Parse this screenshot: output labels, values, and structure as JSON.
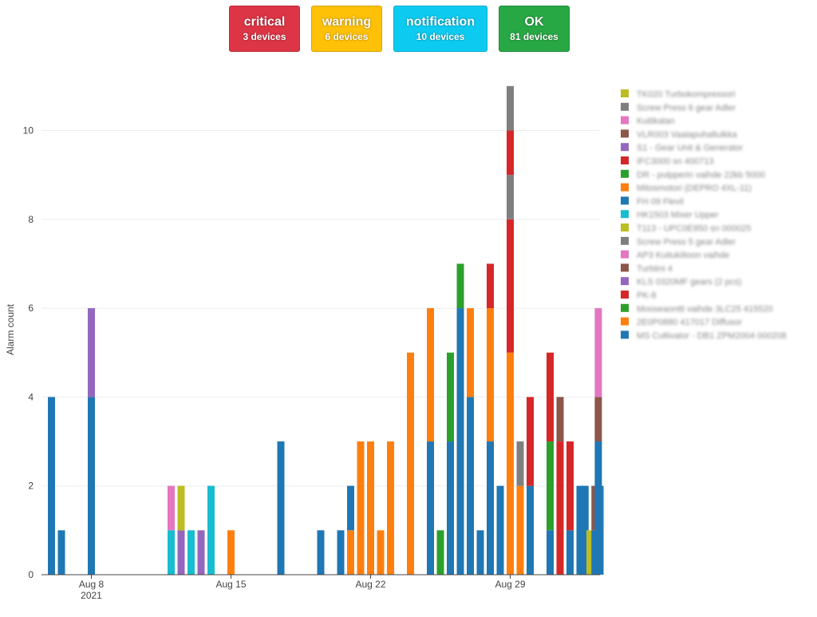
{
  "status": [
    {
      "key": "critical",
      "label": "critical",
      "count": "3 devices",
      "color": "#dc3545"
    },
    {
      "key": "warning",
      "label": "warning",
      "count": "6 devices",
      "color": "#ffc107"
    },
    {
      "key": "notification",
      "label": "notification",
      "count": "10 devices",
      "color": "#0dcaf0"
    },
    {
      "key": "ok",
      "label": "OK",
      "count": "81 devices",
      "color": "#28a745"
    }
  ],
  "chart_data": {
    "type": "bar",
    "stacked": true,
    "title": "",
    "xlabel": "",
    "ylabel": "Alarm count",
    "ylim": [
      0,
      11.5
    ],
    "yticks": [
      0,
      2,
      4,
      6,
      8,
      10
    ],
    "xlim": [
      "2021-08-05T12:00",
      "2021-09-02T12:00"
    ],
    "xticks": [
      {
        "date": "2021-08-08",
        "label": "Aug 8",
        "sublabel": "2021"
      },
      {
        "date": "2021-08-15",
        "label": "Aug 15",
        "sublabel": ""
      },
      {
        "date": "2021-08-22",
        "label": "Aug 22",
        "sublabel": ""
      },
      {
        "date": "2021-08-29",
        "label": "Aug 29",
        "sublabel": ""
      }
    ],
    "grid": true,
    "legend_position": "right",
    "legend": [
      {
        "name": "TK020 Turbokompressori",
        "color": "#bcbd22"
      },
      {
        "name": "Screw Press 6 gear Adler",
        "color": "#7f7f7f"
      },
      {
        "name": "Kuitikalan",
        "color": "#e377c2"
      },
      {
        "name": "VLR003 Vaaiapuhaltulkka",
        "color": "#8c564b"
      },
      {
        "name": "S1 - Gear Unit & Generator",
        "color": "#9467bd"
      },
      {
        "name": "IFC3000 sn 400713",
        "color": "#d62728"
      },
      {
        "name": "DR - pulpperin vaihde 22kb 5000",
        "color": "#2ca02c"
      },
      {
        "name": "Mitosmotori (DEPRO 4XL-11)",
        "color": "#ff7f0e"
      },
      {
        "name": "FH 09 Flevil",
        "color": "#1f77b4"
      },
      {
        "name": "HK1503 Mixer Upper",
        "color": "#17becf"
      },
      {
        "name": "T113 - UPC0E950 sn 000025",
        "color": "#bcbd22"
      },
      {
        "name": "Screw Press 5 gear Adler",
        "color": "#7f7f7f"
      },
      {
        "name": "AP3 Kuitukiitoon vaihde",
        "color": "#e377c2"
      },
      {
        "name": "Turbiini 4",
        "color": "#8c564b"
      },
      {
        "name": "KLS 0320MF gears (2 pcs)",
        "color": "#9467bd"
      },
      {
        "name": "PK-8",
        "color": "#d62728"
      },
      {
        "name": "Mooseaontti vaihde 3LC25 415520",
        "color": "#2ca02c"
      },
      {
        "name": "2E0P0880 417017 Diffusor",
        "color": "#ff7f0e"
      },
      {
        "name": "MS Cultivator - DB1 ZPM2004 000208",
        "color": "#1f77b4"
      }
    ],
    "bars": [
      {
        "x": "2021-08-06T00:00",
        "segments": [
          {
            "c": "#1f77b4",
            "v": 4
          }
        ]
      },
      {
        "x": "2021-08-06T12:00",
        "segments": [
          {
            "c": "#1f77b4",
            "v": 1
          }
        ]
      },
      {
        "x": "2021-08-08T00:00",
        "segments": [
          {
            "c": "#1f77b4",
            "v": 4
          },
          {
            "c": "#9467bd",
            "v": 2
          }
        ]
      },
      {
        "x": "2021-08-12T00:00",
        "segments": [
          {
            "c": "#17becf",
            "v": 1
          },
          {
            "c": "#e377c2",
            "v": 1
          }
        ]
      },
      {
        "x": "2021-08-12T12:00",
        "segments": [
          {
            "c": "#9467bd",
            "v": 1
          },
          {
            "c": "#bcbd22",
            "v": 1
          }
        ]
      },
      {
        "x": "2021-08-13T00:00",
        "segments": [
          {
            "c": "#17becf",
            "v": 1
          }
        ]
      },
      {
        "x": "2021-08-13T12:00",
        "segments": [
          {
            "c": "#9467bd",
            "v": 1
          }
        ]
      },
      {
        "x": "2021-08-14T00:00",
        "segments": [
          {
            "c": "#17becf",
            "v": 2
          }
        ]
      },
      {
        "x": "2021-08-15T00:00",
        "segments": [
          {
            "c": "#ff7f0e",
            "v": 1
          }
        ]
      },
      {
        "x": "2021-08-17T12:00",
        "segments": [
          {
            "c": "#1f77b4",
            "v": 3
          }
        ]
      },
      {
        "x": "2021-08-19T12:00",
        "segments": [
          {
            "c": "#1f77b4",
            "v": 1
          }
        ]
      },
      {
        "x": "2021-08-20T12:00",
        "segments": [
          {
            "c": "#1f77b4",
            "v": 1
          }
        ]
      },
      {
        "x": "2021-08-21T00:00",
        "segments": [
          {
            "c": "#ff7f0e",
            "v": 1
          },
          {
            "c": "#1f77b4",
            "v": 1
          }
        ]
      },
      {
        "x": "2021-08-21T12:00",
        "segments": [
          {
            "c": "#ff7f0e",
            "v": 3
          }
        ]
      },
      {
        "x": "2021-08-22T00:00",
        "segments": [
          {
            "c": "#ff7f0e",
            "v": 3
          }
        ]
      },
      {
        "x": "2021-08-22T12:00",
        "segments": [
          {
            "c": "#ff7f0e",
            "v": 1
          }
        ]
      },
      {
        "x": "2021-08-23T00:00",
        "segments": [
          {
            "c": "#ff7f0e",
            "v": 3
          }
        ]
      },
      {
        "x": "2021-08-24T00:00",
        "segments": [
          {
            "c": "#ff7f0e",
            "v": 5
          }
        ]
      },
      {
        "x": "2021-08-25T00:00",
        "segments": [
          {
            "c": "#1f77b4",
            "v": 3
          },
          {
            "c": "#ff7f0e",
            "v": 3
          }
        ]
      },
      {
        "x": "2021-08-25T12:00",
        "segments": [
          {
            "c": "#2ca02c",
            "v": 1
          }
        ]
      },
      {
        "x": "2021-08-26T00:00",
        "segments": [
          {
            "c": "#1f77b4",
            "v": 3
          },
          {
            "c": "#2ca02c",
            "v": 2
          }
        ]
      },
      {
        "x": "2021-08-26T12:00",
        "segments": [
          {
            "c": "#1f77b4",
            "v": 6
          },
          {
            "c": "#2ca02c",
            "v": 1
          }
        ]
      },
      {
        "x": "2021-08-27T00:00",
        "segments": [
          {
            "c": "#1f77b4",
            "v": 4
          },
          {
            "c": "#ff7f0e",
            "v": 2
          }
        ]
      },
      {
        "x": "2021-08-27T12:00",
        "segments": [
          {
            "c": "#1f77b4",
            "v": 1
          }
        ]
      },
      {
        "x": "2021-08-28T00:00",
        "segments": [
          {
            "c": "#1f77b4",
            "v": 3
          },
          {
            "c": "#ff7f0e",
            "v": 3
          },
          {
            "c": "#d62728",
            "v": 1
          }
        ]
      },
      {
        "x": "2021-08-28T12:00",
        "segments": [
          {
            "c": "#1f77b4",
            "v": 2
          }
        ]
      },
      {
        "x": "2021-08-29T00:00",
        "segments": [
          {
            "c": "#ff7f0e",
            "v": 5
          },
          {
            "c": "#d62728",
            "v": 3
          },
          {
            "c": "#7f7f7f",
            "v": 1
          },
          {
            "c": "#d62728",
            "v": 1
          },
          {
            "c": "#7f7f7f",
            "v": 1
          }
        ]
      },
      {
        "x": "2021-08-29T12:00",
        "segments": [
          {
            "c": "#ff7f0e",
            "v": 2
          },
          {
            "c": "#7f7f7f",
            "v": 1
          }
        ]
      },
      {
        "x": "2021-08-30T00:00",
        "segments": [
          {
            "c": "#1f77b4",
            "v": 2
          },
          {
            "c": "#d62728",
            "v": 2
          }
        ]
      },
      {
        "x": "2021-08-31T00:00",
        "segments": [
          {
            "c": "#1f77b4",
            "v": 1
          },
          {
            "c": "#2ca02c",
            "v": 2
          },
          {
            "c": "#d62728",
            "v": 2
          }
        ]
      },
      {
        "x": "2021-08-31T12:00",
        "segments": [
          {
            "c": "#d62728",
            "v": 3
          },
          {
            "c": "#8c564b",
            "v": 1
          }
        ]
      },
      {
        "x": "2021-09-01T00:00",
        "segments": [
          {
            "c": "#1f77b4",
            "v": 1
          },
          {
            "c": "#d62728",
            "v": 2
          }
        ]
      },
      {
        "x": "2021-09-01T12:00",
        "segments": [
          {
            "c": "#1f77b4",
            "v": 2
          }
        ]
      },
      {
        "x": "2021-09-01T18:00",
        "segments": [
          {
            "c": "#1f77b4",
            "v": 2
          }
        ]
      },
      {
        "x": "2021-09-02T00:00",
        "segments": [
          {
            "c": "#bcbd22",
            "v": 1
          }
        ]
      },
      {
        "x": "2021-09-02T06:00",
        "segments": [
          {
            "c": "#1f77b4",
            "v": 1
          },
          {
            "c": "#8c564b",
            "v": 1
          }
        ]
      },
      {
        "x": "2021-09-02T10:00",
        "segments": [
          {
            "c": "#1f77b4",
            "v": 3
          },
          {
            "c": "#8c564b",
            "v": 1
          },
          {
            "c": "#e377c2",
            "v": 2
          }
        ]
      },
      {
        "x": "2021-09-02T12:00",
        "segments": [
          {
            "c": "#1f77b4",
            "v": 2
          }
        ]
      }
    ]
  }
}
